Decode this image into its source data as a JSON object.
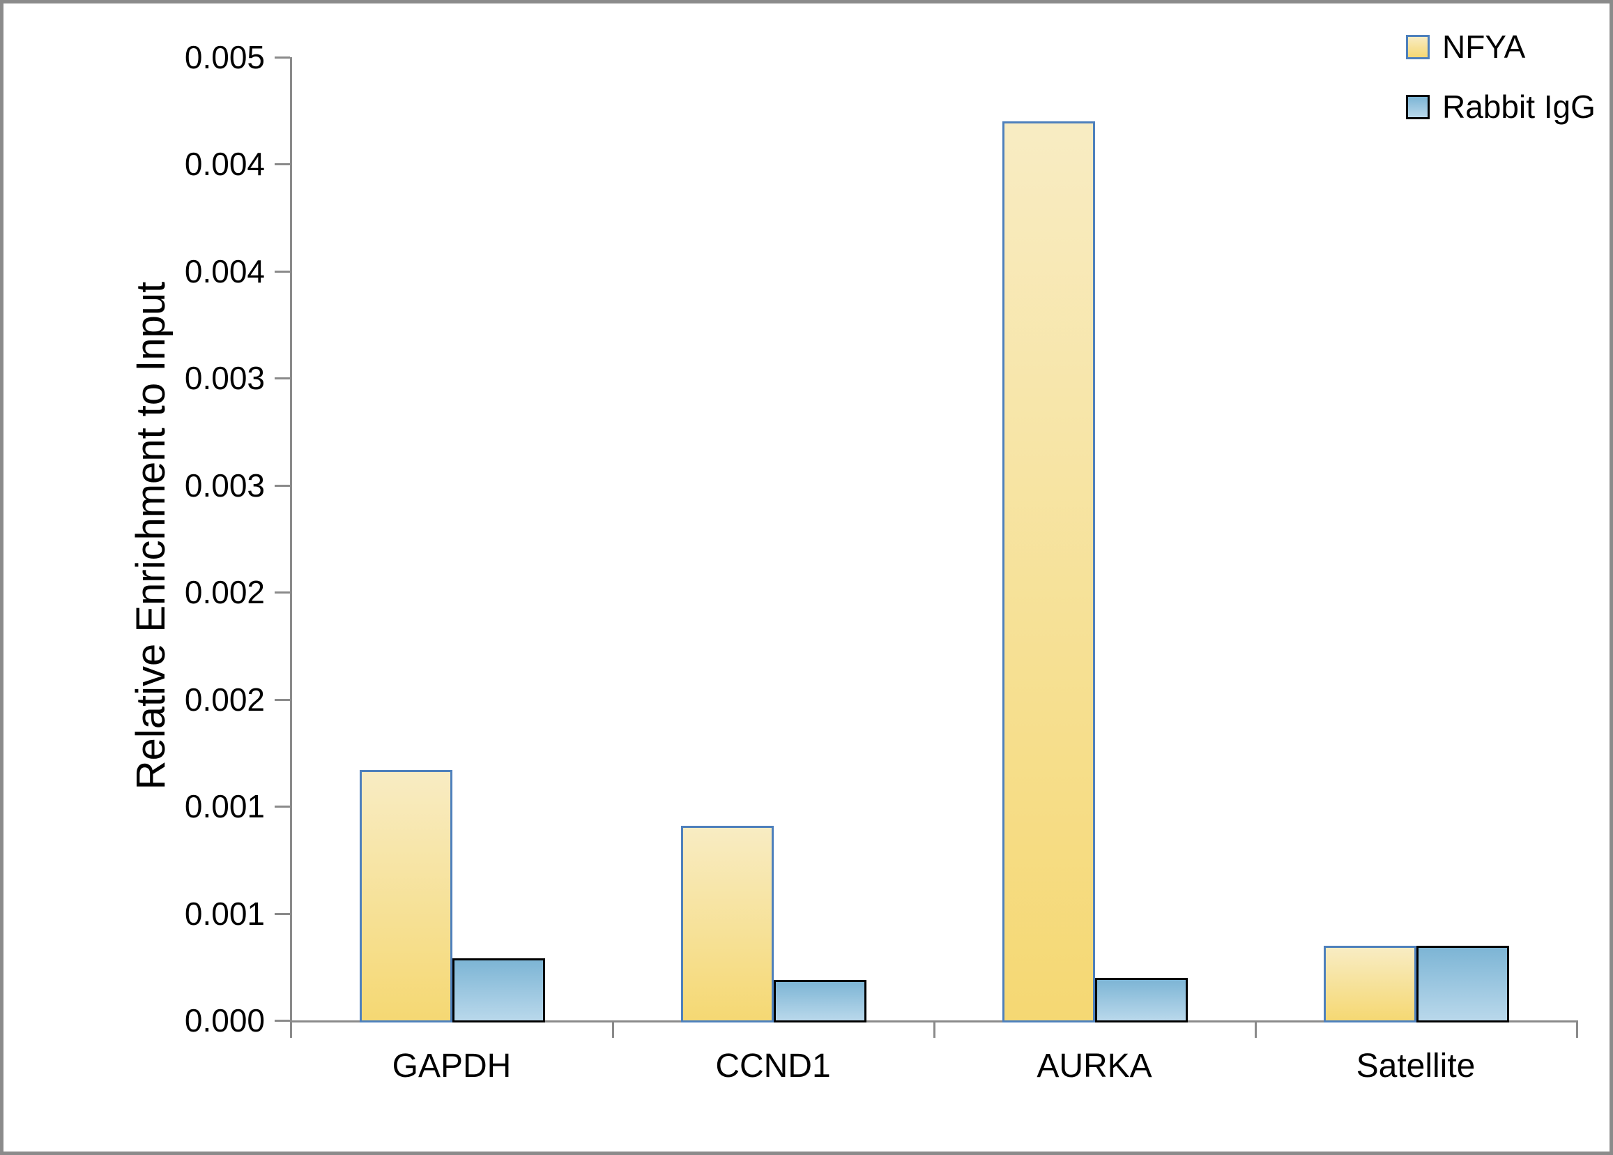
{
  "chart_data": {
    "type": "bar",
    "title": "",
    "xlabel": "",
    "ylabel": "Relative Enrichment to Input",
    "categories": [
      "GAPDH",
      "CCND1",
      "AURKA",
      "Satellite"
    ],
    "series": [
      {
        "name": "NFYA",
        "values": [
          0.00117,
          0.00091,
          0.0042,
          0.00035
        ]
      },
      {
        "name": "Rabbit IgG",
        "values": [
          0.00029,
          0.00019,
          0.0002,
          0.00035
        ]
      }
    ],
    "ylim": [
      0,
      0.0045
    ],
    "ytick_step": 0.0005,
    "ytick_labels_bottom_to_top": [
      "0.000",
      "0.001",
      "0.001",
      "0.002",
      "0.002",
      "0.003",
      "0.003",
      "0.004",
      "0.004",
      "0.005"
    ],
    "ytick_values_bottom_to_top": [
      0,
      0.0005,
      0.001,
      0.0015,
      0.002,
      0.0025,
      0.003,
      0.0035,
      0.004,
      0.0045
    ],
    "grid": false,
    "legend_position": "top-right"
  },
  "colors": {
    "nfya_fill_top": "#F8ECC3",
    "nfya_fill_bottom": "#F5D873",
    "nfya_border": "#4E80BC",
    "igg_fill_top": "#7DB5D5",
    "igg_fill_bottom": "#B9D8EB",
    "igg_border": "#000000",
    "axis": "#8a8a8a",
    "frame": "#8b8b8b",
    "text": "#000000"
  }
}
